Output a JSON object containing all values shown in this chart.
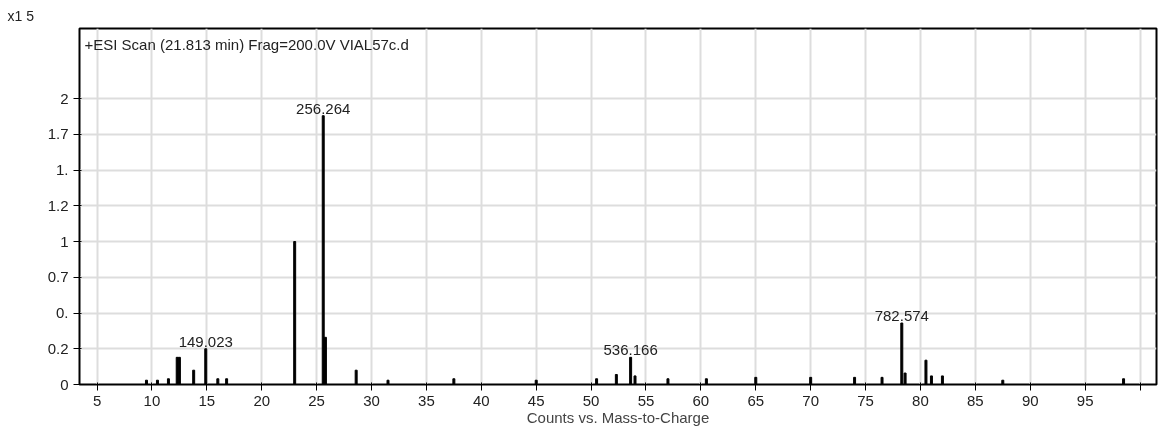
{
  "chart_data": {
    "type": "bar",
    "title": "+ESI Scan (21.813 min) Frag=200.0V VIAL57c.d",
    "xlabel": "Counts vs. Mass-to-Charge",
    "ylabel": "x1 5",
    "x": [
      9.5,
      10.5,
      11.5,
      12.3,
      12.5,
      13.8,
      14.9,
      16.0,
      16.8,
      23.0,
      25.6,
      25.8,
      28.6,
      31.5,
      37.5,
      45.0,
      50.5,
      52.3,
      53.6,
      54.0,
      57.0,
      60.5,
      65.0,
      70.0,
      74.0,
      76.5,
      78.3,
      78.6,
      80.5,
      81.0,
      82.0,
      87.5,
      98.5
    ],
    "values": [
      0.03,
      0.03,
      0.04,
      0.19,
      0.19,
      0.1,
      0.25,
      0.04,
      0.04,
      1.0,
      1.88,
      0.33,
      0.1,
      0.03,
      0.04,
      0.03,
      0.04,
      0.07,
      0.19,
      0.06,
      0.04,
      0.04,
      0.05,
      0.05,
      0.05,
      0.05,
      0.43,
      0.08,
      0.17,
      0.06,
      0.06,
      0.03,
      0.04
    ],
    "color": "#000000",
    "annotations": [
      {
        "text": "149.023",
        "x": 14.9,
        "y": 0.25
      },
      {
        "text": "256.264",
        "x": 25.6,
        "y": 1.88
      },
      {
        "text": "536.166",
        "x": 53.6,
        "y": 0.19
      },
      {
        "text": "782.574",
        "x": 78.3,
        "y": 0.43
      }
    ],
    "xlim": [
      3.4,
      101.5
    ],
    "ylim": [
      0,
      2.49
    ],
    "xticks": [
      5,
      10,
      15,
      20,
      25,
      30,
      35,
      40,
      45,
      50,
      55,
      60,
      65,
      70,
      75,
      80,
      85,
      90,
      95,
      {
        "value": 100,
        "label": null
      }
    ],
    "yticks": [
      0,
      {
        "value": 0.25,
        "label": "0.2"
      },
      {
        "value": 0.5,
        "label": "0."
      },
      {
        "value": 0.75,
        "label": "0.7"
      },
      1,
      {
        "value": 1.25,
        "label": "1.2"
      },
      {
        "value": 1.5,
        "label": "1."
      },
      {
        "value": 1.75,
        "label": "1.7"
      },
      2
    ],
    "grid": true
  }
}
